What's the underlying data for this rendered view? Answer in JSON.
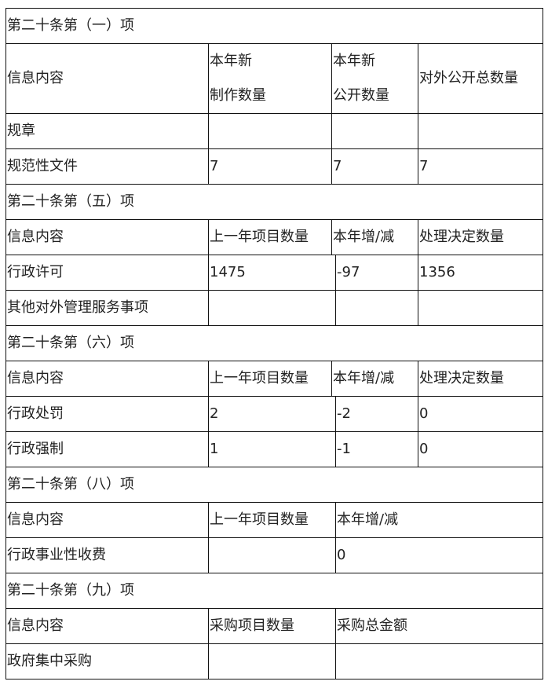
{
  "s1": {
    "title": "第二十条第（一）项",
    "h": [
      "信息内容",
      "本年新制作数量",
      "本年新公开数量",
      "对外公开总数量"
    ],
    "h1a": "本年新",
    "h1b": "制作数量",
    "h2a": "本年新",
    "h2b": "公开数量",
    "rows": [
      [
        "规章",
        "",
        "",
        ""
      ],
      [
        "规范性文件",
        "7",
        "7",
        "7"
      ]
    ]
  },
  "s5": {
    "title": "第二十条第（五）项",
    "h": [
      "信息内容",
      "上一年项目数量",
      "本年增/减",
      "处理决定数量"
    ],
    "rows": [
      [
        "行政许可",
        "1475",
        "-97",
        "1356"
      ],
      [
        "其他对外管理服务事项",
        "",
        "",
        ""
      ]
    ]
  },
  "s6": {
    "title": "第二十条第（六）项",
    "h": [
      "信息内容",
      "上一年项目数量",
      "本年增/减",
      "处理决定数量"
    ],
    "rows": [
      [
        "行政处罚",
        "2",
        "-2",
        "0"
      ],
      [
        "行政强制",
        "1",
        "-1",
        "0"
      ]
    ]
  },
  "s8": {
    "title": "第二十条第（八）项",
    "h": [
      "信息内容",
      "上一年项目数量",
      "本年增/减"
    ],
    "rows": [
      [
        "行政事业性收费",
        "",
        "0"
      ]
    ]
  },
  "s9": {
    "title": "第二十条第（九）项",
    "h": [
      "信息内容",
      "采购项目数量",
      "采购总金额"
    ],
    "rows": [
      [
        "政府集中采购",
        "",
        ""
      ]
    ]
  }
}
